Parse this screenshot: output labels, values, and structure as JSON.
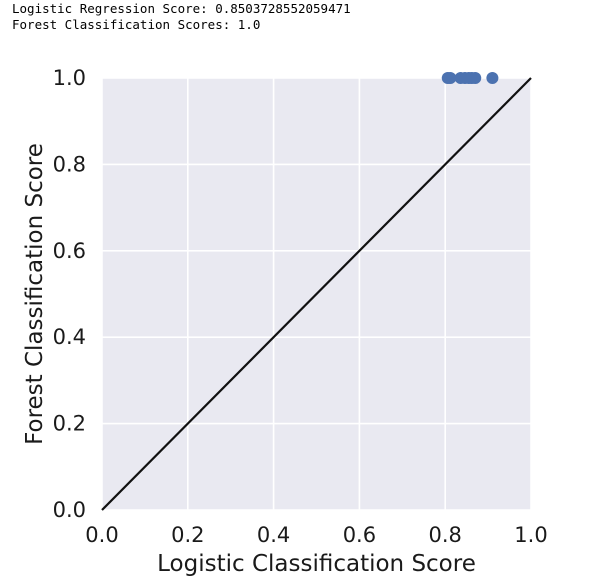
{
  "output": {
    "line1": "Logistic Regression Score: 0.8503728552059471",
    "line2": "Forest Classification Scores: 1.0"
  },
  "chart_data": {
    "type": "scatter",
    "title": "",
    "xlabel": "Logistic Classification Score",
    "ylabel": "Forest Classification Score",
    "xlim": [
      0.0,
      1.0
    ],
    "ylim": [
      0.0,
      1.0
    ],
    "xticks": [
      "0.0",
      "0.2",
      "0.4",
      "0.6",
      "0.8",
      "1.0"
    ],
    "yticks": [
      "0.0",
      "0.2",
      "0.4",
      "0.6",
      "0.8",
      "1.0"
    ],
    "grid": true,
    "background_color": "#e9e9f1",
    "grid_color": "#ffffff",
    "point_color": "#4c72b0",
    "reference_line": {
      "x": [
        0.0,
        1.0
      ],
      "y": [
        0.0,
        1.0
      ],
      "color": "#111111"
    },
    "series": [
      {
        "x": [
          0.806,
          0.812,
          0.836,
          0.846,
          0.855,
          0.862,
          0.87,
          0.91
        ],
        "y": [
          1.0,
          1.0,
          1.0,
          1.0,
          1.0,
          1.0,
          1.0,
          1.0
        ]
      }
    ]
  }
}
